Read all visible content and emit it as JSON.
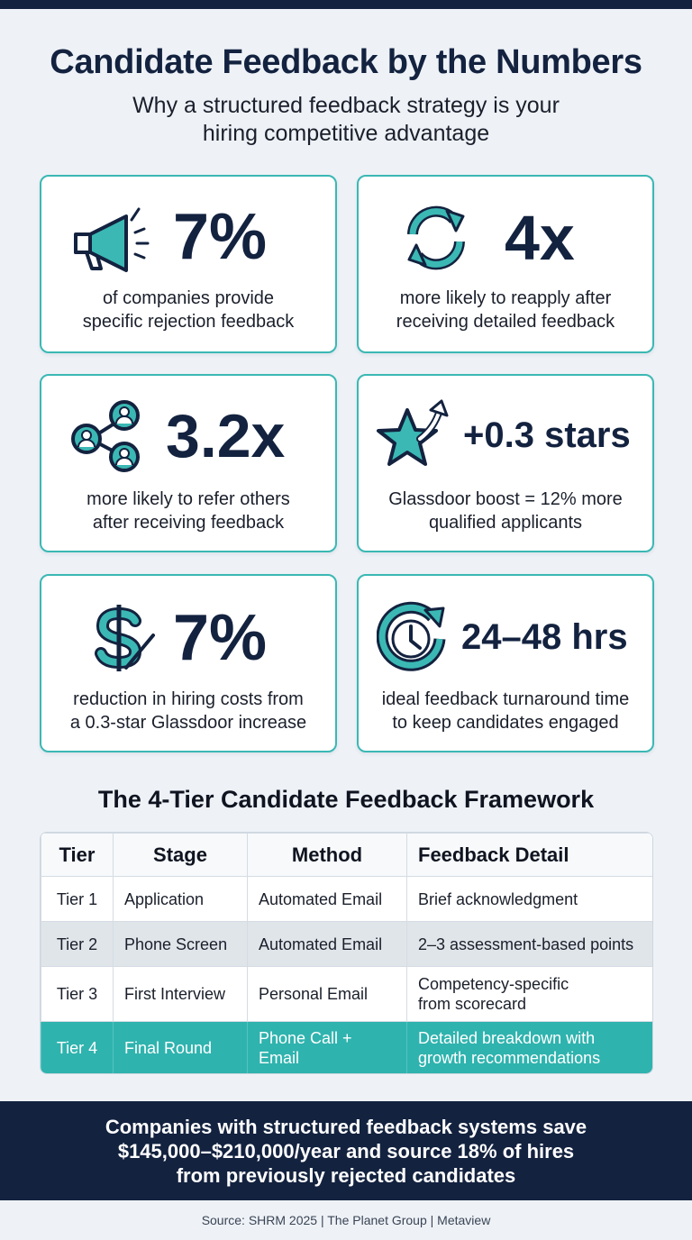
{
  "header": {
    "title": "Candidate Feedback by the Numbers",
    "subtitle_line1": "Why a structured feedback strategy is your",
    "subtitle_line2": "hiring competitive advantage"
  },
  "colors": {
    "navy": "#13223f",
    "teal": "#2fb3ae",
    "card_border": "#3bb8b4",
    "background": "#eef2f7"
  },
  "stats": [
    {
      "icon": "megaphone-icon",
      "value": "7%",
      "desc_line1": "of companies provide",
      "desc_line2": "specific rejection feedback"
    },
    {
      "icon": "refresh-arrows-icon",
      "value": "4x",
      "desc_line1": "more likely to reapply after",
      "desc_line2": "receiving detailed feedback"
    },
    {
      "icon": "network-people-icon",
      "value": "3.2x",
      "desc_line1": "more likely to refer others",
      "desc_line2": "after receiving feedback"
    },
    {
      "icon": "star-arrow-icon",
      "value": "+0.3 stars",
      "desc_line1": "Glassdoor boost = 12% more",
      "desc_line2": "qualified applicants"
    },
    {
      "icon": "dollar-icon",
      "value": "7%",
      "desc_line1": "reduction in hiring costs from",
      "desc_line2": "a 0.3-star Glassdoor increase"
    },
    {
      "icon": "clock-icon",
      "value": "24–48 hrs",
      "desc_line1": "ideal feedback turnaround time",
      "desc_line2": "to keep candidates engaged"
    }
  ],
  "framework": {
    "title": "The 4-Tier Candidate Feedback Framework",
    "headers": [
      "Tier",
      "Stage",
      "Method",
      "Feedback Detail"
    ],
    "rows": [
      {
        "tier": "Tier 1",
        "stage": "Application",
        "method": "Automated Email",
        "detail_line1": "Brief acknowledgment",
        "detail_line2": ""
      },
      {
        "tier": "Tier 2",
        "stage": "Phone Screen",
        "method": "Automated Email",
        "detail_line1": "2–3 assessment-based points",
        "detail_line2": ""
      },
      {
        "tier": "Tier 3",
        "stage": "First Interview",
        "method": "Personal Email",
        "detail_line1": "Competency-specific",
        "detail_line2": "from scorecard"
      },
      {
        "tier": "Tier 4",
        "stage": "Final Round",
        "method": "Phone Call + Email",
        "detail_line1": "Detailed breakdown with",
        "detail_line2": "growth recommendations"
      }
    ]
  },
  "footer": {
    "line1": "Companies with structured feedback systems save",
    "line2": "$145,000–$210,000/year and source 18% of hires",
    "line3": "from previously rejected candidates",
    "source": "Source: SHRM 2025 | The Planet Group | Metaview"
  }
}
